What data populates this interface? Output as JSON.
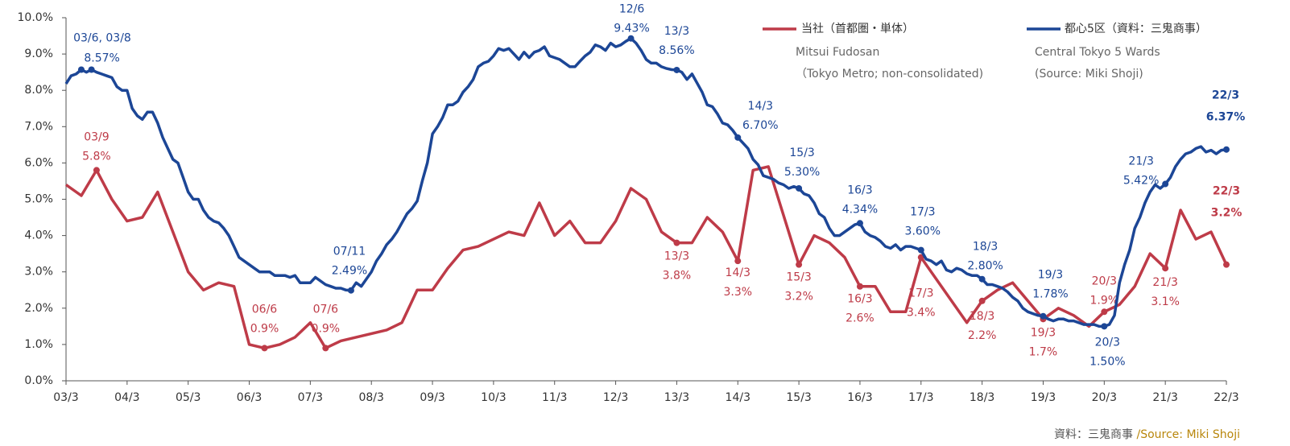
{
  "chart_data": {
    "type": "line",
    "xlim": [
      "03/3",
      "22/3"
    ],
    "xticks": [
      "03/3",
      "04/3",
      "05/3",
      "06/3",
      "07/3",
      "08/3",
      "09/3",
      "10/3",
      "11/3",
      "12/3",
      "13/3",
      "14/3",
      "15/3",
      "16/3",
      "17/3",
      "18/3",
      "19/3",
      "20/3",
      "21/3",
      "22/3"
    ],
    "ylim": [
      0,
      10
    ],
    "yticks": [
      {
        "value": 0,
        "label": "0.0%"
      },
      {
        "value": 1,
        "label": "1.0%"
      },
      {
        "value": 2,
        "label": "2.0%"
      },
      {
        "value": 3,
        "label": "3.0%"
      },
      {
        "value": 4,
        "label": "4.0%"
      },
      {
        "value": 5,
        "label": "5.0%"
      },
      {
        "value": 6,
        "label": "6.0%"
      },
      {
        "value": 7,
        "label": "7.0%"
      },
      {
        "value": 8,
        "label": "8.0%"
      },
      {
        "value": 9,
        "label": "9.0%"
      },
      {
        "value": 10,
        "label": "10.0%"
      }
    ],
    "grid": false,
    "series": [
      {
        "name": "当社（首都圏・単体）",
        "legend_notes": [
          "Mitsui Fudosan",
          "（Tokyo Metro; non-consolidated)"
        ],
        "color": "#be3b48",
        "x": [
          "03/3",
          "03/6",
          "03/9",
          "03/12",
          "04/3",
          "04/6",
          "04/9",
          "05/3",
          "05/6",
          "05/9",
          "05/12",
          "06/3",
          "06/6",
          "06/9",
          "06/12",
          "07/3",
          "07/6",
          "07/9",
          "08/3",
          "08/6",
          "08/9",
          "08/12",
          "09/3",
          "09/6",
          "09/9",
          "09/12",
          "10/6",
          "10/9",
          "10/12",
          "11/3",
          "11/6",
          "11/9",
          "11/12",
          "12/3",
          "12/6",
          "12/9",
          "12/12",
          "13/3",
          "13/6",
          "13/9",
          "13/12",
          "14/3",
          "14/6",
          "14/9",
          "15/3",
          "15/6",
          "15/9",
          "15/12",
          "16/3",
          "16/6",
          "16/9",
          "16/12",
          "17/3",
          "17/12",
          "18/3",
          "18/6",
          "18/9",
          "18/12",
          "19/3",
          "19/6",
          "19/9",
          "19/12",
          "20/3",
          "20/6",
          "20/9",
          "20/12",
          "21/3",
          "21/6",
          "21/9",
          "21/12",
          "22/3"
        ],
        "values": [
          5.4,
          5.1,
          5.8,
          5.0,
          4.4,
          4.5,
          5.2,
          3.0,
          2.5,
          2.7,
          2.6,
          1.0,
          0.9,
          1.0,
          1.2,
          1.6,
          0.9,
          1.1,
          1.3,
          1.4,
          1.6,
          2.5,
          2.5,
          3.1,
          3.6,
          3.7,
          4.1,
          4.0,
          4.9,
          4.0,
          4.4,
          3.8,
          3.8,
          4.4,
          5.3,
          5.0,
          4.1,
          3.8,
          3.8,
          4.5,
          4.1,
          3.3,
          5.8,
          5.9,
          3.2,
          4.0,
          3.8,
          3.4,
          2.6,
          2.6,
          1.9,
          1.9,
          3.4,
          1.6,
          2.2,
          2.5,
          2.7,
          2.2,
          1.7,
          2.0,
          1.8,
          1.5,
          1.9,
          2.1,
          2.6,
          3.5,
          3.1,
          4.7,
          3.9,
          4.1,
          3.2
        ],
        "labels": [
          {
            "x": "03/9",
            "value_label": "5.8%"
          },
          {
            "x": "06/6",
            "value_label": "0.9%"
          },
          {
            "x": "07/6",
            "value_label": "0.9%"
          },
          {
            "x": "13/3",
            "value_label": "3.8%"
          },
          {
            "x": "14/3",
            "value_label": "3.3%"
          },
          {
            "x": "15/3",
            "value_label": "3.2%"
          },
          {
            "x": "16/3",
            "value_label": "2.6%"
          },
          {
            "x": "17/3",
            "value_label": "3.4%"
          },
          {
            "x": "18/3",
            "value_label": "2.2%"
          },
          {
            "x": "19/3",
            "value_label": "1.7%"
          },
          {
            "x": "20/3",
            "value_label": "1.9%"
          },
          {
            "x": "21/3",
            "value_label": "3.1%"
          },
          {
            "x": "22/3",
            "value_label": "3.2%"
          }
        ]
      },
      {
        "name": "都心5区（資料：三鬼商事）",
        "legend_notes": [
          "Central Tokyo 5 Wards",
          "(Source: Miki Shoji)"
        ],
        "color": "#1c4696",
        "x": [
          "03/3",
          "03/4",
          "03/5",
          "03/6",
          "03/7",
          "03/8",
          "03/9",
          "03/10",
          "03/11",
          "03/12",
          "04/1",
          "04/2",
          "04/3",
          "04/4",
          "04/5",
          "04/6",
          "04/7",
          "04/8",
          "04/9",
          "04/10",
          "04/11",
          "04/12",
          "05/1",
          "05/2",
          "05/3",
          "05/4",
          "05/5",
          "05/6",
          "05/7",
          "05/8",
          "05/9",
          "05/10",
          "05/11",
          "05/12",
          "06/1",
          "06/2",
          "06/3",
          "06/4",
          "06/5",
          "06/6",
          "06/7",
          "06/8",
          "06/9",
          "06/10",
          "06/11",
          "06/12",
          "07/1",
          "07/2",
          "07/3",
          "07/4",
          "07/5",
          "07/6",
          "07/7",
          "07/8",
          "07/9",
          "07/10",
          "07/11",
          "07/12",
          "08/1",
          "08/2",
          "08/3",
          "08/4",
          "08/5",
          "08/6",
          "08/7",
          "08/8",
          "08/9",
          "08/10",
          "08/11",
          "08/12",
          "09/1",
          "09/2",
          "09/3",
          "09/4",
          "09/5",
          "09/6",
          "09/7",
          "09/8",
          "09/9",
          "09/10",
          "09/11",
          "09/12",
          "10/1",
          "10/2",
          "10/3",
          "10/4",
          "10/5",
          "10/6",
          "10/7",
          "10/8",
          "10/9",
          "10/10",
          "10/11",
          "10/12",
          "11/1",
          "11/2",
          "11/3",
          "11/4",
          "11/5",
          "11/6",
          "11/7",
          "11/8",
          "11/9",
          "11/10",
          "11/11",
          "11/12",
          "12/1",
          "12/2",
          "12/3",
          "12/4",
          "12/5",
          "12/6",
          "12/7",
          "12/8",
          "12/9",
          "12/10",
          "12/11",
          "12/12",
          "13/1",
          "13/2",
          "13/3",
          "13/4",
          "13/5",
          "13/6",
          "13/7",
          "13/8",
          "13/9",
          "13/10",
          "13/11",
          "13/12",
          "14/1",
          "14/2",
          "14/3",
          "14/4",
          "14/5",
          "14/6",
          "14/7",
          "14/8",
          "14/9",
          "14/10",
          "14/11",
          "14/12",
          "15/1",
          "15/2",
          "15/3",
          "15/4",
          "15/5",
          "15/6",
          "15/7",
          "15/8",
          "15/9",
          "15/10",
          "15/11",
          "15/12",
          "16/1",
          "16/2",
          "16/3",
          "16/4",
          "16/5",
          "16/6",
          "16/7",
          "16/8",
          "16/9",
          "16/10",
          "16/11",
          "16/12",
          "17/1",
          "17/2",
          "17/3",
          "17/4",
          "17/5",
          "17/6",
          "17/7",
          "17/8",
          "17/9",
          "17/10",
          "17/11",
          "17/12",
          "18/1",
          "18/2",
          "18/3",
          "18/4",
          "18/5",
          "18/6",
          "18/7",
          "18/8",
          "18/9",
          "18/10",
          "18/11",
          "18/12",
          "19/1",
          "19/2",
          "19/3",
          "19/4",
          "19/5",
          "19/6",
          "19/7",
          "19/8",
          "19/9",
          "19/10",
          "19/11",
          "19/12",
          "20/1",
          "20/2",
          "20/3",
          "20/4",
          "20/5",
          "20/6",
          "20/7",
          "20/8",
          "20/9",
          "20/10",
          "20/11",
          "20/12",
          "21/1",
          "21/2",
          "21/3",
          "21/4",
          "21/5",
          "21/6",
          "21/7",
          "21/8",
          "21/9",
          "21/10",
          "21/11",
          "21/12",
          "22/1",
          "22/2",
          "22/3"
        ],
        "values": [
          8.18,
          8.4,
          8.45,
          8.57,
          8.5,
          8.57,
          8.5,
          8.45,
          8.4,
          8.35,
          8.1,
          8.0,
          8.0,
          7.5,
          7.3,
          7.2,
          7.4,
          7.4,
          7.1,
          6.7,
          6.4,
          6.1,
          6.0,
          5.6,
          5.2,
          5.0,
          5.0,
          4.7,
          4.5,
          4.4,
          4.35,
          4.2,
          4.0,
          3.7,
          3.4,
          3.3,
          3.2,
          3.1,
          3.0,
          3.0,
          3.0,
          2.9,
          2.9,
          2.9,
          2.85,
          2.9,
          2.7,
          2.7,
          2.7,
          2.85,
          2.75,
          2.65,
          2.6,
          2.55,
          2.55,
          2.5,
          2.49,
          2.7,
          2.6,
          2.8,
          3.0,
          3.3,
          3.5,
          3.75,
          3.9,
          4.1,
          4.35,
          4.6,
          4.75,
          4.95,
          5.5,
          6.0,
          6.8,
          7.0,
          7.25,
          7.6,
          7.6,
          7.7,
          7.95,
          8.1,
          8.3,
          8.65,
          8.75,
          8.8,
          8.95,
          9.15,
          9.1,
          9.15,
          9.0,
          8.85,
          9.05,
          8.9,
          9.05,
          9.1,
          9.2,
          8.95,
          8.9,
          8.85,
          8.75,
          8.65,
          8.65,
          8.8,
          8.95,
          9.05,
          9.25,
          9.2,
          9.1,
          9.3,
          9.2,
          9.25,
          9.35,
          9.43,
          9.3,
          9.1,
          8.85,
          8.75,
          8.75,
          8.65,
          8.6,
          8.57,
          8.56,
          8.5,
          8.3,
          8.45,
          8.2,
          7.95,
          7.6,
          7.55,
          7.35,
          7.1,
          7.05,
          6.9,
          6.7,
          6.55,
          6.4,
          6.1,
          5.95,
          5.65,
          5.6,
          5.55,
          5.45,
          5.4,
          5.3,
          5.35,
          5.3,
          5.15,
          5.1,
          4.9,
          4.6,
          4.5,
          4.2,
          4.0,
          4.0,
          4.1,
          4.2,
          4.3,
          4.34,
          4.1,
          4.0,
          3.95,
          3.85,
          3.7,
          3.65,
          3.75,
          3.6,
          3.7,
          3.7,
          3.65,
          3.6,
          3.35,
          3.3,
          3.2,
          3.3,
          3.05,
          3.0,
          3.1,
          3.05,
          2.95,
          2.9,
          2.9,
          2.8,
          2.65,
          2.65,
          2.6,
          2.55,
          2.45,
          2.3,
          2.2,
          2.0,
          1.9,
          1.85,
          1.8,
          1.78,
          1.7,
          1.65,
          1.7,
          1.7,
          1.65,
          1.65,
          1.6,
          1.55,
          1.55,
          1.55,
          1.5,
          1.5,
          1.55,
          1.8,
          2.7,
          3.2,
          3.6,
          4.2,
          4.5,
          4.9,
          5.2,
          5.4,
          5.3,
          5.42,
          5.6,
          5.9,
          6.1,
          6.25,
          6.3,
          6.4,
          6.45,
          6.3,
          6.35,
          6.25,
          6.35,
          6.37
        ],
        "labels": [
          {
            "x": "03/6",
            "date_label": "03/6, 03/8"
          },
          {
            "x": "03/8",
            "value_label": "8.57%"
          },
          {
            "x": "07/11",
            "value_label": "2.49%"
          },
          {
            "x": "12/6",
            "value_label": "9.43%"
          },
          {
            "x": "13/3",
            "value_label": "8.56%"
          },
          {
            "x": "14/3",
            "value_label": "6.70%"
          },
          {
            "x": "15/3",
            "value_label": "5.30%"
          },
          {
            "x": "16/3",
            "value_label": "4.34%"
          },
          {
            "x": "17/3",
            "value_label": "3.60%"
          },
          {
            "x": "18/3",
            "value_label": "2.80%"
          },
          {
            "x": "19/3",
            "value_label": "1.78%"
          },
          {
            "x": "20/3",
            "value_label": "1.50%"
          },
          {
            "x": "21/3",
            "value_label": "5.42%"
          },
          {
            "x": "22/3",
            "value_label": "6.37%"
          }
        ]
      }
    ],
    "source_ja": "資料：三鬼商事",
    "source_en": " /Source: Miki Shoji"
  }
}
